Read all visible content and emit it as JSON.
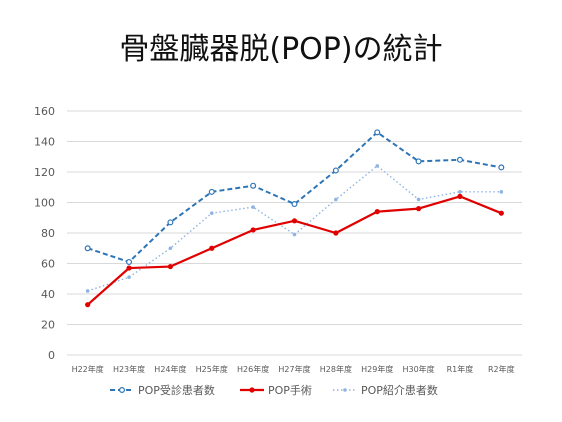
{
  "chart_data": {
    "type": "line",
    "title": "骨盤臓器脱(POP)の統計",
    "xlabel": "",
    "ylabel": "",
    "categories": [
      "H22年度",
      "H23年度",
      "H24年度",
      "H25年度",
      "H26年度",
      "H27年度",
      "H28年度",
      "H29年度",
      "H30年度",
      "R1年度",
      "R2年度"
    ],
    "ylim": [
      0,
      160
    ],
    "yticks": [
      0,
      20,
      40,
      60,
      80,
      100,
      120,
      140,
      160
    ],
    "grid": true,
    "legend_position": "bottom",
    "series": [
      {
        "name": "POP受診患者数",
        "values": [
          70,
          61,
          87,
          107,
          111,
          99,
          121,
          146,
          127,
          128,
          123
        ],
        "color": "#2E75B6",
        "style": "dashed-open-marker"
      },
      {
        "name": "POP手術",
        "values": [
          33,
          57,
          58,
          70,
          82,
          88,
          80,
          94,
          96,
          104,
          93
        ],
        "color": "#E00000",
        "style": "solid"
      },
      {
        "name": "POP紹介患者数",
        "values": [
          42,
          51,
          70,
          93,
          97,
          79,
          102,
          124,
          102,
          107,
          107
        ],
        "color": "#8FB4E3",
        "style": "dotted"
      }
    ]
  }
}
